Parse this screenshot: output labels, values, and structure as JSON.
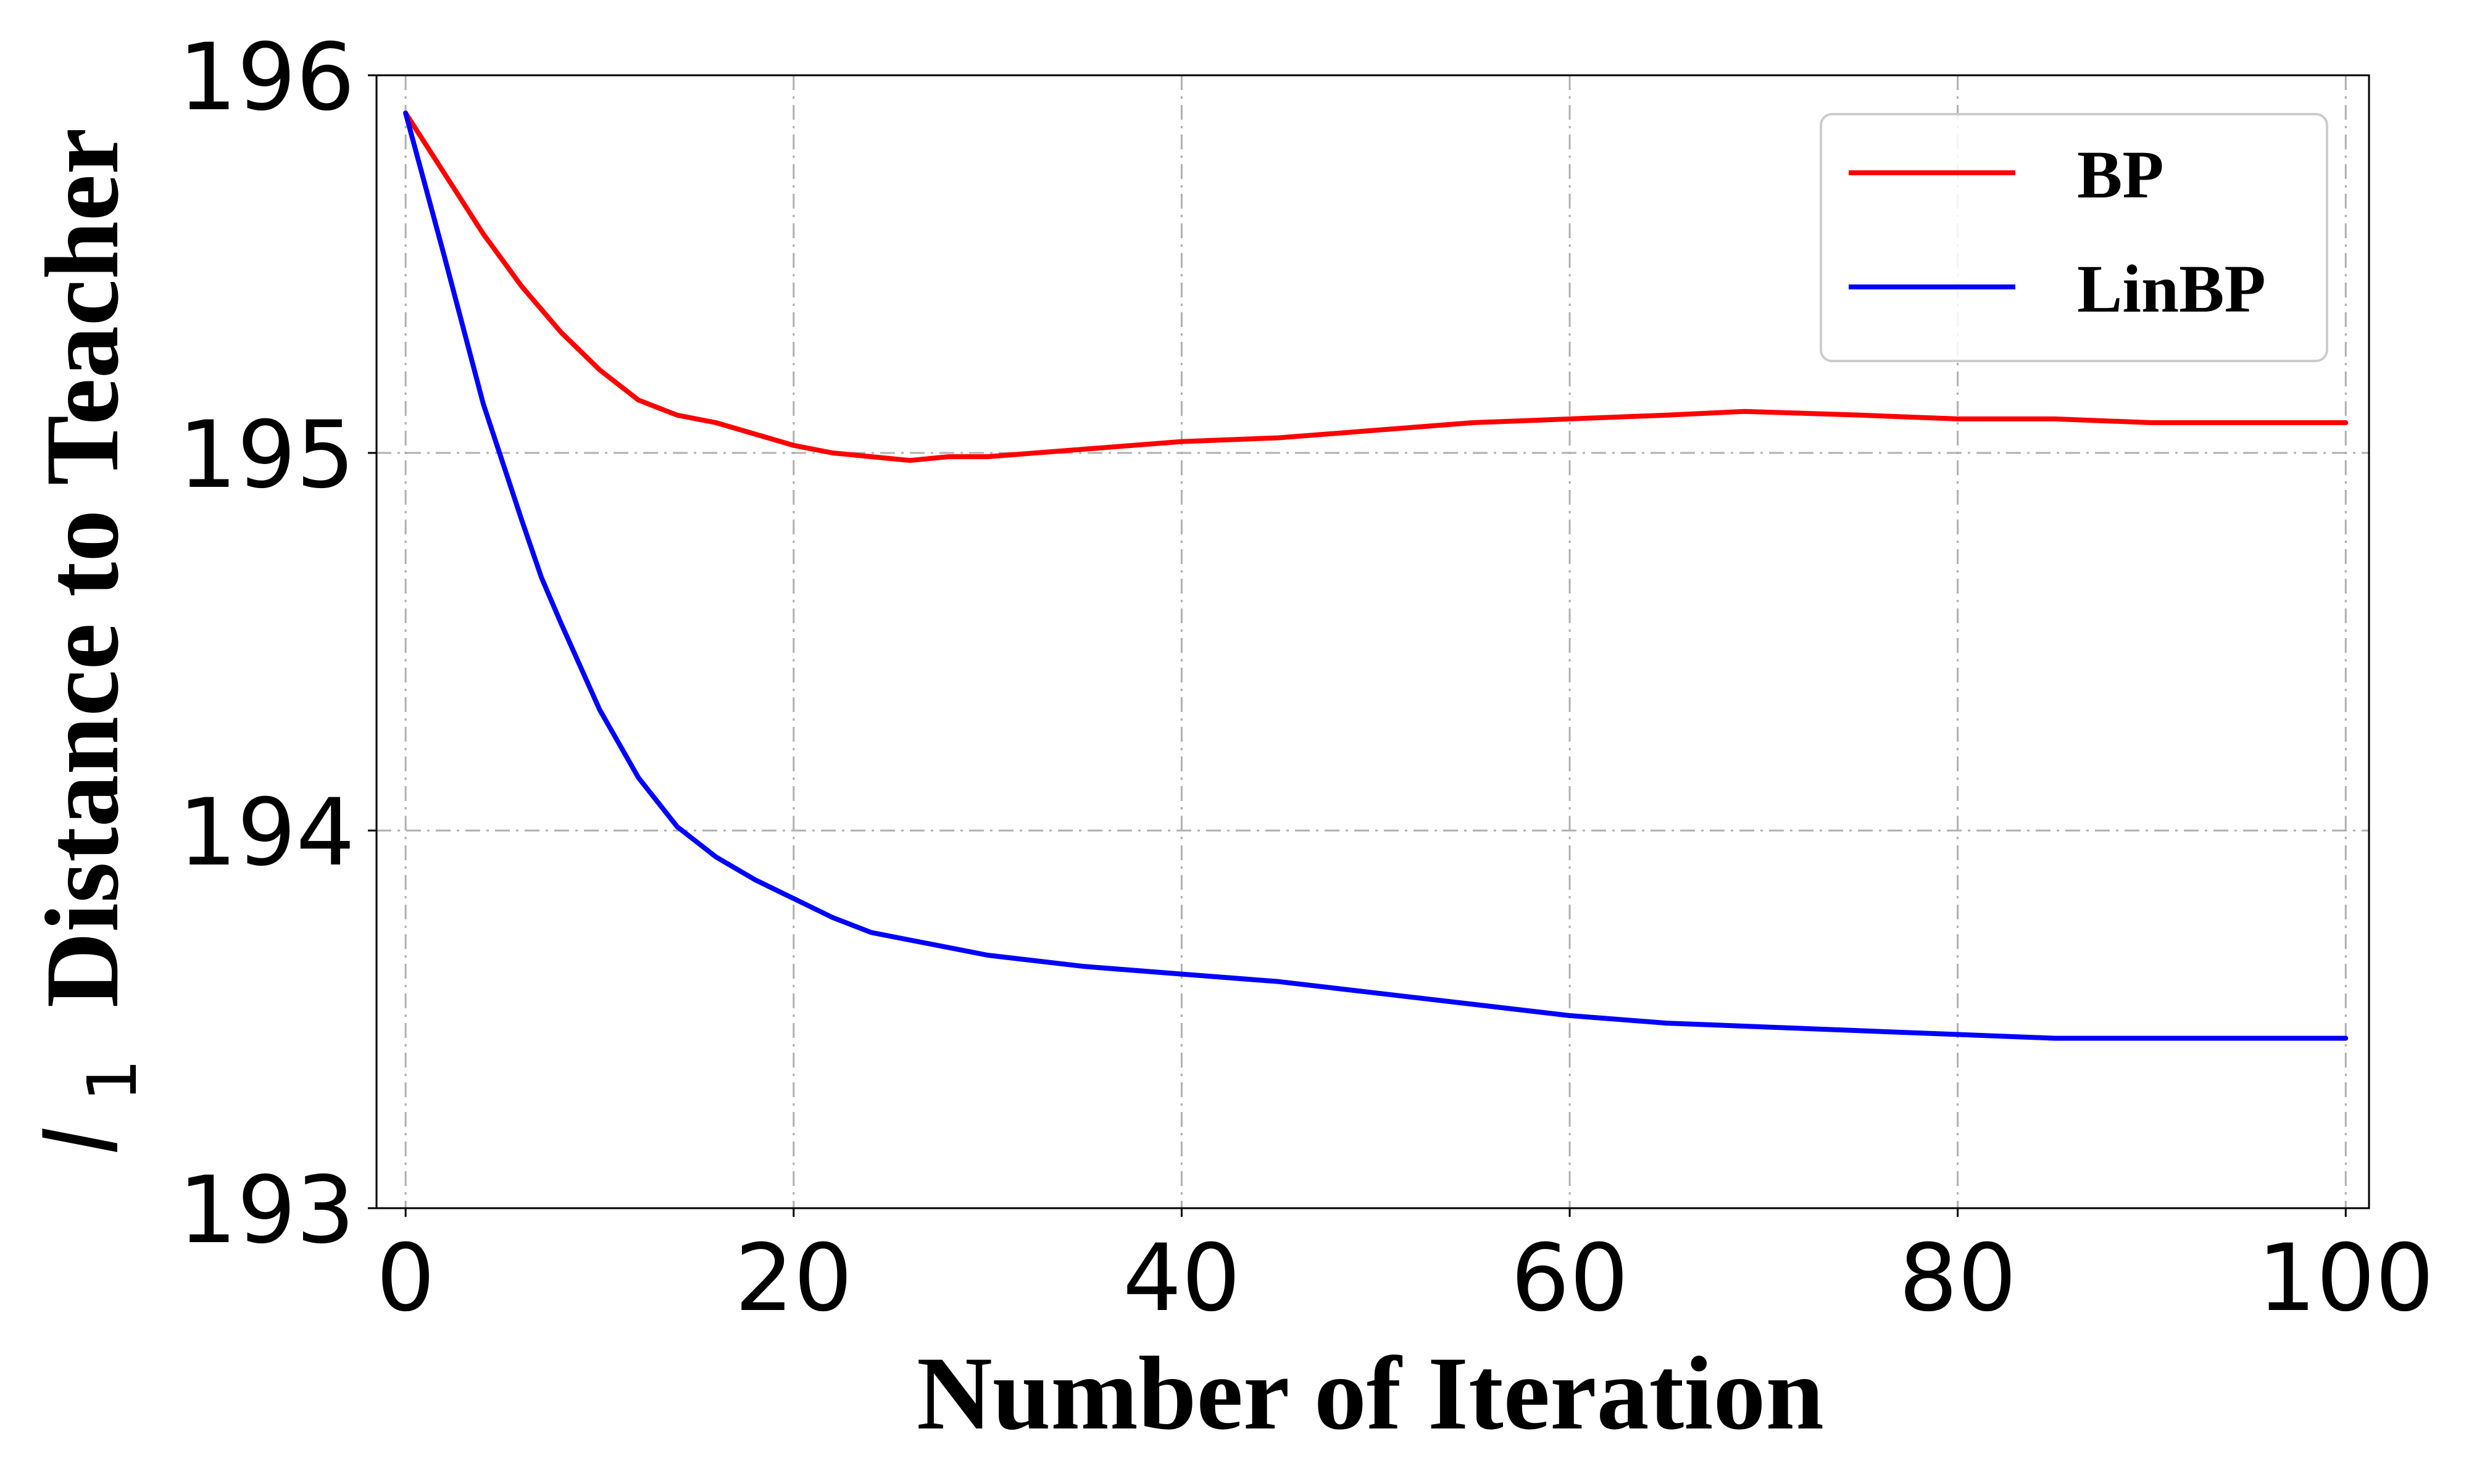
{
  "chart_data": {
    "type": "line",
    "xlabel": "Number of Iteration",
    "ylabel": "Distance to Teacher",
    "ylabel_symbol": "l",
    "ylabel_subscript": "1",
    "xlim": [
      -1.5,
      101.2
    ],
    "ylim": [
      193,
      196
    ],
    "x_ticks": [
      0,
      20,
      40,
      60,
      80,
      100
    ],
    "x_tick_labels": [
      "0",
      "20",
      "40",
      "60",
      "80",
      "100"
    ],
    "y_ticks": [
      193,
      194,
      195,
      196
    ],
    "y_tick_labels": [
      "193",
      "194",
      "195",
      "196"
    ],
    "grid": true,
    "grid_style": "dash-dot",
    "legend_position": "top-right",
    "series": [
      {
        "name": "BP",
        "color": "#ff0000",
        "x": [
          0,
          2,
          4,
          6,
          8,
          10,
          12,
          13,
          14,
          16,
          18,
          20,
          22,
          24,
          26,
          28,
          30,
          35,
          40,
          45,
          50,
          55,
          60,
          65,
          69,
          75,
          80,
          85,
          90,
          95,
          100
        ],
        "y": [
          195.9,
          195.74,
          195.58,
          195.44,
          195.32,
          195.22,
          195.14,
          195.12,
          195.1,
          195.08,
          195.05,
          195.02,
          195.0,
          194.99,
          194.98,
          194.99,
          194.99,
          195.01,
          195.03,
          195.04,
          195.06,
          195.08,
          195.09,
          195.1,
          195.11,
          195.1,
          195.09,
          195.09,
          195.08,
          195.08,
          195.08
        ]
      },
      {
        "name": "LinBP",
        "color": "#0000ff",
        "x": [
          0,
          2,
          4,
          6,
          7,
          8,
          10,
          12,
          14,
          16,
          18,
          20,
          22,
          24,
          26,
          28,
          30,
          35,
          40,
          45,
          50,
          55,
          60,
          65,
          70,
          75,
          80,
          85,
          90,
          95,
          100
        ],
        "y": [
          195.9,
          195.52,
          195.13,
          194.82,
          194.67,
          194.55,
          194.32,
          194.14,
          194.01,
          193.93,
          193.87,
          193.82,
          193.77,
          193.73,
          193.71,
          193.69,
          193.67,
          193.64,
          193.62,
          193.6,
          193.57,
          193.54,
          193.51,
          193.49,
          193.48,
          193.47,
          193.46,
          193.45,
          193.45,
          193.45,
          193.45
        ]
      }
    ]
  }
}
